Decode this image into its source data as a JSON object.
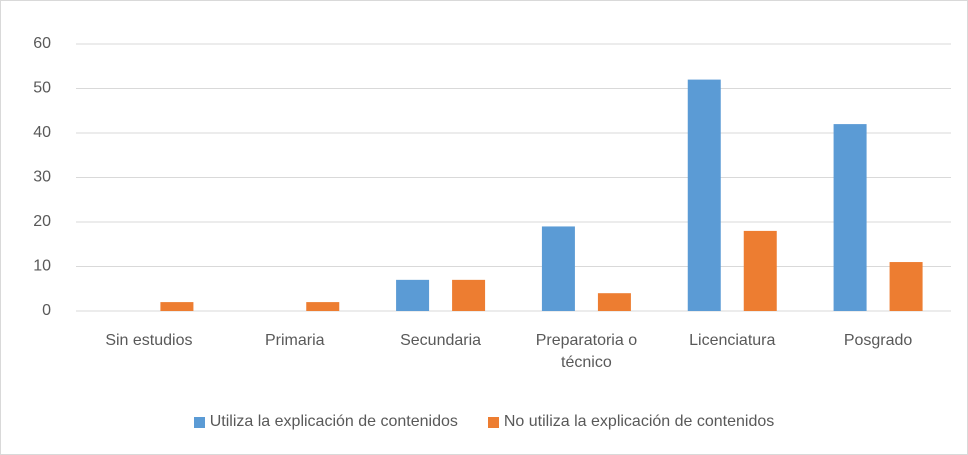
{
  "chart_data": {
    "type": "bar",
    "categories": [
      "Sin estudios",
      "Primaria",
      "Secundaria",
      "Preparatoria o técnico",
      "Licenciatura",
      "Posgrado"
    ],
    "series": [
      {
        "name": "Utiliza la explicación de contenidos",
        "color": "#5b9bd5",
        "values": [
          0,
          0,
          7,
          19,
          52,
          42
        ]
      },
      {
        "name": "No utiliza la explicación de contenidos",
        "color": "#ed7d31",
        "values": [
          2,
          2,
          7,
          4,
          18,
          11
        ]
      }
    ],
    "ylim": [
      0,
      60
    ],
    "yticks": [
      0,
      10,
      20,
      30,
      40,
      50,
      60
    ],
    "grid": true,
    "legend": "bottom"
  }
}
